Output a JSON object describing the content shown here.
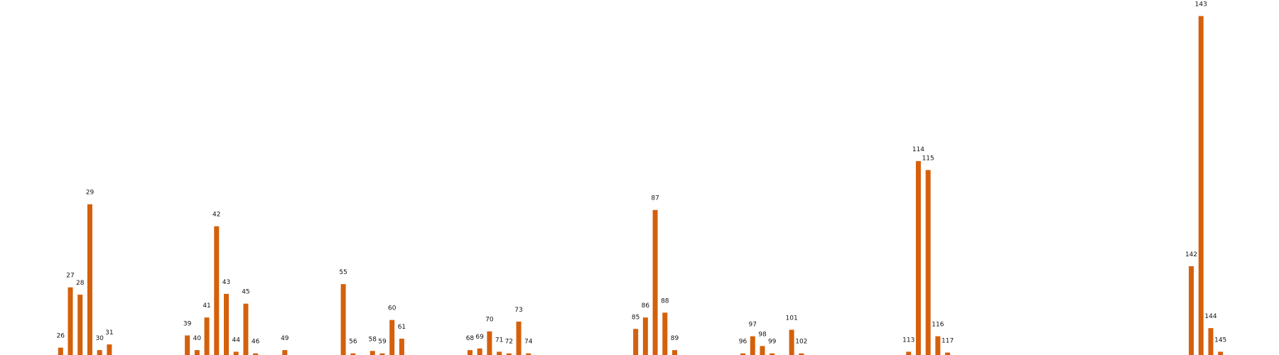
{
  "chart_data": {
    "type": "bar",
    "color": "#d5600b",
    "x": [
      26,
      27,
      28,
      29,
      30,
      31,
      39,
      40,
      41,
      42,
      43,
      44,
      45,
      46,
      49,
      55,
      56,
      58,
      59,
      60,
      61,
      68,
      69,
      70,
      71,
      72,
      73,
      74,
      85,
      86,
      87,
      88,
      89,
      96,
      97,
      98,
      99,
      101,
      102,
      113,
      114,
      115,
      116,
      117,
      142,
      143,
      144,
      145
    ],
    "values": [
      9,
      83,
      74,
      185,
      6,
      13,
      24,
      6,
      46,
      158,
      75,
      4,
      63,
      2,
      6,
      87,
      2,
      5,
      2,
      43,
      20,
      6,
      8,
      29,
      4,
      2,
      41,
      2,
      32,
      46,
      178,
      52,
      6,
      2,
      23,
      11,
      2,
      31,
      2,
      4,
      238,
      227,
      23,
      3,
      109,
      416,
      33,
      4
    ],
    "xlim": [
      20,
      151
    ],
    "ylim": [
      0,
      420
    ]
  }
}
